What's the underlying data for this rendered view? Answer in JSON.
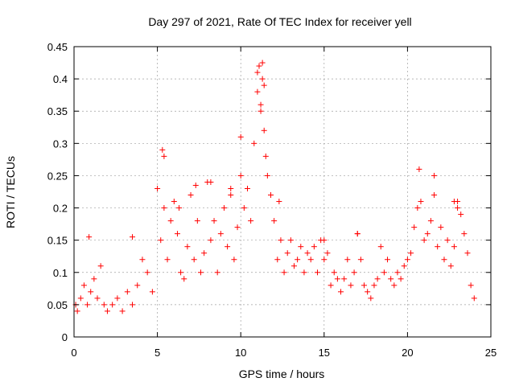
{
  "chart_data": {
    "type": "scatter",
    "title": "Day 297 of 2021, Rate Of TEC Index for receiver yell",
    "xlabel": "GPS time / hours",
    "ylabel": "ROTI / TECUs",
    "xlim": [
      0,
      25
    ],
    "ylim": [
      0,
      0.45
    ],
    "xticks": [
      0,
      5,
      10,
      15,
      20,
      25
    ],
    "yticks": [
      0,
      0.05,
      0.1,
      0.15,
      0.2,
      0.25,
      0.3,
      0.35,
      0.4,
      0.45
    ],
    "xtick_labels": [
      "0",
      "5",
      "10",
      "15",
      "20",
      "25"
    ],
    "ytick_labels": [
      "0",
      "0.05",
      "0.1",
      "0.15",
      "0.2",
      "0.25",
      "0.3",
      "0.35",
      "0.4",
      "0.45"
    ],
    "grid": true,
    "marker": "plus",
    "marker_color": "#ff0000",
    "series": [
      {
        "x": [
          0.1,
          0.2,
          0.4,
          0.6,
          0.8,
          1.0,
          1.2,
          1.4,
          1.6,
          1.8,
          2.0,
          2.3,
          2.6,
          2.9,
          3.2,
          3.5,
          3.8,
          4.1,
          4.4,
          4.7,
          5.0,
          5.2,
          5.4,
          5.6,
          5.8,
          6.0,
          6.2,
          6.4,
          6.6,
          6.8,
          7.0,
          7.2,
          7.4,
          7.6,
          7.8,
          8.0,
          8.2,
          8.4,
          8.6,
          8.8,
          9.0,
          9.2,
          9.4,
          9.6,
          9.8,
          10.0,
          10.2,
          10.4,
          10.6,
          10.8,
          11.0,
          11.1,
          11.2,
          11.3,
          11.4,
          11.5,
          11.6,
          11.8,
          12.0,
          12.2,
          12.4,
          12.6,
          12.8,
          13.0,
          13.2,
          13.4,
          13.6,
          13.8,
          14.0,
          14.2,
          14.4,
          14.6,
          14.8,
          15.0,
          15.2,
          15.4,
          15.6,
          15.8,
          16.0,
          16.2,
          16.4,
          16.6,
          16.8,
          17.0,
          17.2,
          17.4,
          17.6,
          17.8,
          18.0,
          18.2,
          18.4,
          18.6,
          18.8,
          19.0,
          19.2,
          19.4,
          19.6,
          19.8,
          20.0,
          20.2,
          20.4,
          20.6,
          20.8,
          21.0,
          21.2,
          21.4,
          21.6,
          21.8,
          22.0,
          22.2,
          22.4,
          22.6,
          22.8,
          23.0,
          23.2,
          23.4,
          23.6,
          23.8,
          24.0,
          0.9,
          5.3,
          5.4,
          11.0,
          11.3,
          11.4,
          11.2,
          10.0,
          20.7,
          21.6,
          3.5,
          17.0,
          22.8,
          23.0,
          6.3,
          8.2,
          12.3,
          15.0,
          7.3,
          9.4
        ],
        "y": [
          0.05,
          0.04,
          0.06,
          0.08,
          0.05,
          0.07,
          0.09,
          0.06,
          0.11,
          0.05,
          0.04,
          0.05,
          0.06,
          0.04,
          0.07,
          0.05,
          0.08,
          0.12,
          0.1,
          0.07,
          0.23,
          0.15,
          0.2,
          0.12,
          0.18,
          0.21,
          0.16,
          0.1,
          0.09,
          0.14,
          0.22,
          0.12,
          0.18,
          0.1,
          0.13,
          0.24,
          0.15,
          0.18,
          0.1,
          0.16,
          0.2,
          0.14,
          0.22,
          0.12,
          0.17,
          0.25,
          0.2,
          0.23,
          0.18,
          0.3,
          0.38,
          0.42,
          0.35,
          0.4,
          0.32,
          0.28,
          0.25,
          0.22,
          0.18,
          0.12,
          0.15,
          0.1,
          0.13,
          0.15,
          0.11,
          0.12,
          0.14,
          0.1,
          0.13,
          0.12,
          0.14,
          0.1,
          0.15,
          0.12,
          0.13,
          0.08,
          0.1,
          0.09,
          0.07,
          0.09,
          0.12,
          0.08,
          0.1,
          0.16,
          0.12,
          0.08,
          0.07,
          0.06,
          0.08,
          0.09,
          0.14,
          0.1,
          0.12,
          0.09,
          0.08,
          0.1,
          0.09,
          0.11,
          0.12,
          0.13,
          0.17,
          0.2,
          0.21,
          0.15,
          0.16,
          0.18,
          0.22,
          0.14,
          0.17,
          0.12,
          0.15,
          0.11,
          0.14,
          0.21,
          0.19,
          0.16,
          0.13,
          0.08,
          0.06,
          0.155,
          0.29,
          0.28,
          0.41,
          0.425,
          0.39,
          0.36,
          0.31,
          0.26,
          0.25,
          0.155,
          0.16,
          0.21,
          0.2,
          0.2,
          0.24,
          0.21,
          0.15,
          0.235,
          0.23
        ]
      }
    ]
  }
}
